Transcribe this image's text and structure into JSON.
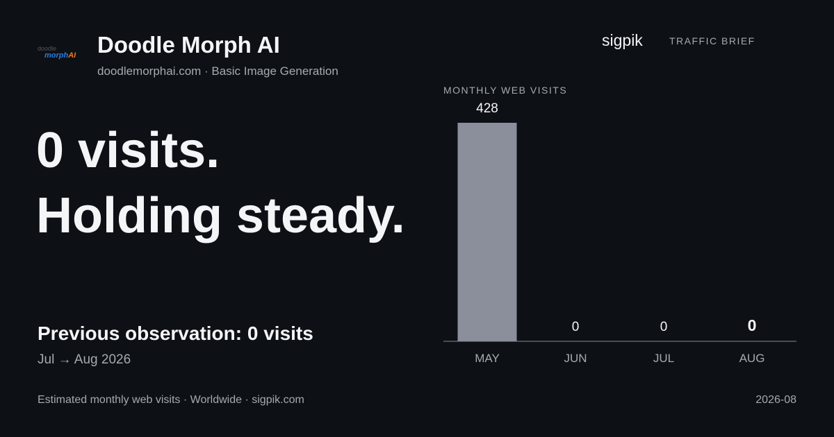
{
  "brand": {
    "logo_top": "doodle",
    "logo_main": "morph",
    "logo_accent": "AI",
    "name": "Doodle Morph AI",
    "domain": "doodlemorphai.com",
    "category": "Basic Image Generation"
  },
  "header": {
    "site": "sigpik",
    "section": "TRAFFIC BRIEF"
  },
  "headline": {
    "line1": "0 visits.",
    "line2": "Holding steady."
  },
  "previous": {
    "text": "Previous observation: 0 visits",
    "period": "Jul → Aug 2026"
  },
  "footer": {
    "source": "Estimated monthly web visits · Worldwide · sigpik.com",
    "date": "2026-08"
  },
  "chart_data": {
    "type": "bar",
    "title": "MONTHLY WEB VISITS",
    "categories": [
      "MAY",
      "JUN",
      "JUL",
      "AUG"
    ],
    "values": [
      428,
      0,
      0,
      0
    ],
    "color": "#8a8f9b"
  }
}
